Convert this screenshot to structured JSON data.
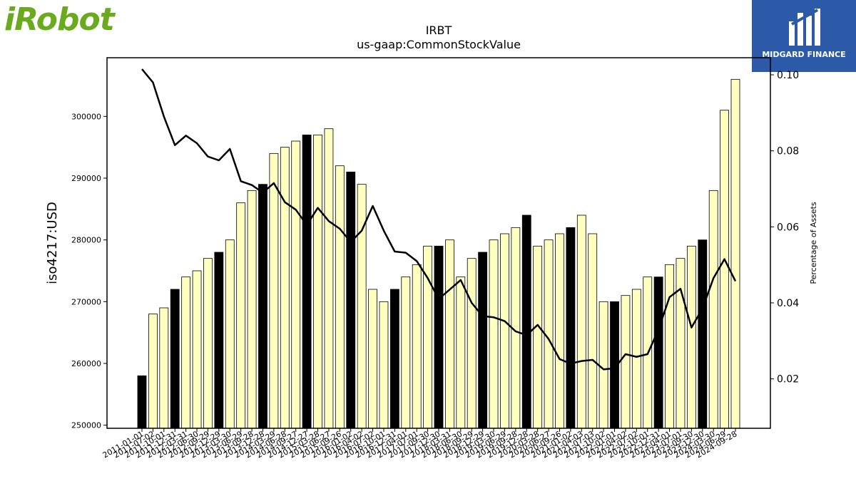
{
  "logos": {
    "left_text": "iRobot",
    "right_text": "MIDGARD FINANCE",
    "left_color": "#6aaa1e",
    "right_bg": "#2c5aa9"
  },
  "chart_data": {
    "type": "bar",
    "title": "IRBT",
    "subtitle": "us-gaap:CommonStockValue",
    "ylabel": "iso4217:USD",
    "y2label": "Percentage of Assets",
    "ylim": [
      249500,
      309500
    ],
    "y2lim": [
      0.007,
      0.1045
    ],
    "yticks": [
      250000,
      260000,
      270000,
      280000,
      290000,
      300000
    ],
    "y2ticks": [
      0.02,
      0.04,
      0.06,
      0.08,
      0.1
    ],
    "colors": {
      "bar_fill": "#ffffbf",
      "bar_highlight": "#000000",
      "line": "#000000"
    },
    "categories": [
      "2011-01-01",
      "2011-07-02",
      "2011-10-01",
      "2011-12-31",
      "2012-03-31",
      "2012-06-30",
      "2012-09-29",
      "2012-12-29",
      "2013-03-30",
      "2013-06-29",
      "2013-09-28",
      "2013-12-28",
      "2014-03-29",
      "2014-06-28",
      "2014-09-27",
      "2014-12-27",
      "2015-03-28",
      "2015-06-27",
      "2015-09-26",
      "2016-01-02",
      "2016-04-02",
      "2016-07-02",
      "2016-10-01",
      "2016-12-31",
      "2017-04-01",
      "2017-07-01",
      "2017-09-30",
      "2017-12-30",
      "2018-03-31",
      "2018-06-30",
      "2018-09-29",
      "2018-12-29",
      "2019-03-30",
      "2019-06-29",
      "2019-09-28",
      "2019-12-28",
      "2020-03-28",
      "2020-06-27",
      "2020-09-26",
      "2021-01-02",
      "2021-04-03",
      "2021-07-03",
      "2021-10-02",
      "2022-01-01",
      "2022-04-02",
      "2022-07-02",
      "2022-10-01",
      "2022-12-31",
      "2023-04-01",
      "2023-07-01",
      "2023-09-30",
      "2023-12-30",
      "2024-03-30",
      "2024-06-29",
      "2024-09-28"
    ],
    "tick_labels": [
      "2011-01-01",
      "2011-07-02",
      "2011-10-01",
      "2011-12-31",
      "2012-03-31",
      "2012-06-30",
      "2012-09-29",
      "2012-12-29",
      "2013-03-30",
      "2013-06-29",
      "2013-09-28",
      "2013-12-28",
      "2014-03-29",
      "2014-06-28",
      "2014-09-27",
      "2014-12-27",
      "2015-03-28",
      "2015-06-27",
      "2015-09-26",
      "2016-01-02",
      "2016-04-02",
      "2016-07-02",
      "2016-10-01",
      "2016-12-31",
      "2017-04-01",
      "2017-07-01",
      "2017-09-30",
      "2017-12-30",
      "2018-03-31",
      "2018-06-30",
      "2018-09-29",
      "2018-12-29",
      "2019-03-30",
      "2019-06-29",
      "2019-09-28",
      "2019-12-28",
      "2020-03-28",
      "2020-06-27",
      "2020-09-26",
      "2021-01-02",
      "2021-04-03",
      "2021-07-03",
      "2021-10-02",
      "2022-01-01",
      "2022-04-02",
      "2022-07-02",
      "2022-10-01",
      "2022-12-31",
      "2023-04-01",
      "2023-07-01",
      "2023-09-30",
      "2023-12-30",
      "2024-03-30",
      "2024-06-29",
      "2024-09-28"
    ],
    "values": [
      258000,
      268000,
      269000,
      272000,
      274000,
      275000,
      277000,
      278000,
      280000,
      286000,
      288000,
      289000,
      294000,
      295000,
      296000,
      297000,
      297000,
      298000,
      292000,
      291000,
      289000,
      272000,
      270000,
      272000,
      274000,
      276000,
      279000,
      279000,
      280000,
      274000,
      277000,
      278000,
      280000,
      281000,
      282000,
      284000,
      279000,
      280000,
      281000,
      282000,
      284000,
      281000,
      270000,
      270000,
      271000,
      272000,
      274000,
      274000,
      276000,
      277000,
      279000,
      280000,
      288000,
      301000,
      306000
    ],
    "highlight": [
      true,
      false,
      false,
      true,
      false,
      false,
      false,
      true,
      false,
      false,
      false,
      true,
      false,
      false,
      false,
      true,
      false,
      false,
      false,
      true,
      false,
      false,
      false,
      true,
      false,
      false,
      false,
      true,
      false,
      false,
      false,
      true,
      false,
      false,
      false,
      true,
      false,
      false,
      false,
      true,
      false,
      false,
      false,
      true,
      false,
      false,
      false,
      true,
      false,
      false,
      false,
      true,
      false,
      false,
      false
    ],
    "series": [
      {
        "values": [
          0.1015,
          0.098,
          0.089,
          0.0815,
          0.084,
          0.082,
          0.0785,
          0.0775,
          0.0805,
          0.072,
          0.071,
          0.069,
          0.0715,
          0.0665,
          0.0645,
          0.0605,
          0.065,
          0.0615,
          0.0595,
          0.056,
          0.059,
          0.0655,
          0.059,
          0.0535,
          0.0532,
          0.051,
          0.0465,
          0.041,
          0.0435,
          0.046,
          0.04,
          0.0365,
          0.0362,
          0.0352,
          0.0325,
          0.0315,
          0.0342,
          0.0305,
          0.0252,
          0.024,
          0.0247,
          0.025,
          0.0225,
          0.0228,
          0.0265,
          0.0258,
          0.0265,
          0.033,
          0.0415,
          0.0437,
          0.0335,
          0.0385,
          0.0465,
          0.0515,
          0.0457
        ]
      }
    ]
  }
}
